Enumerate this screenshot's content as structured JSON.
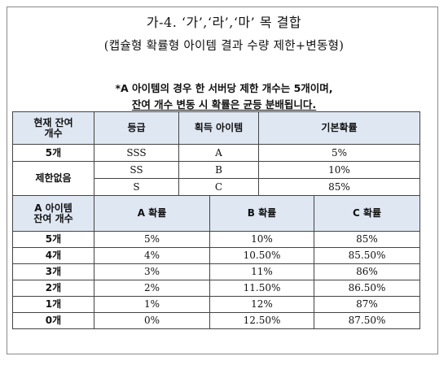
{
  "heading": {
    "title": "가-4. ‘가’,‘라’,‘마’ 목 결합",
    "subtitle": "(캡슐형 확률형 아이템 결과 수량 제한+변동형)"
  },
  "note": {
    "line1": "*A 아이템의 경우 한 서버당 제한 개수는 5개이며,",
    "line2": "잔여 개수 변동 시 확률은 균등 분배됩니다."
  },
  "table1": {
    "headers": [
      "현재 잔여\n개수",
      "등급",
      "획득 아이템",
      "기본확률"
    ],
    "rows": [
      {
        "count": "5개",
        "grade": "SSS",
        "item": "A",
        "prob": "5%"
      },
      {
        "count": "제한없음",
        "grade": "SS",
        "item": "B",
        "prob": "10%"
      },
      {
        "count": "",
        "grade": "S",
        "item": "C",
        "prob": "85%"
      }
    ]
  },
  "table2": {
    "headers": [
      "A 아이템\n잔여 개수",
      "A 확률",
      "B 확률",
      "C 확률"
    ],
    "rows": [
      {
        "count": "5개",
        "a": "5%",
        "b": "10%",
        "c": "85%"
      },
      {
        "count": "4개",
        "a": "4%",
        "b": "10.50%",
        "c": "85.50%"
      },
      {
        "count": "3개",
        "a": "3%",
        "b": "11%",
        "c": "86%"
      },
      {
        "count": "2개",
        "a": "2%",
        "b": "11.50%",
        "c": "86.50%"
      },
      {
        "count": "1개",
        "a": "1%",
        "b": "12%",
        "c": "87%"
      },
      {
        "count": "0개",
        "a": "0%",
        "b": "12.50%",
        "c": "87.50%"
      }
    ]
  },
  "colors": {
    "header_bg": "#dfe7f3",
    "border": "#444444",
    "frame": "#8a8a8a"
  }
}
